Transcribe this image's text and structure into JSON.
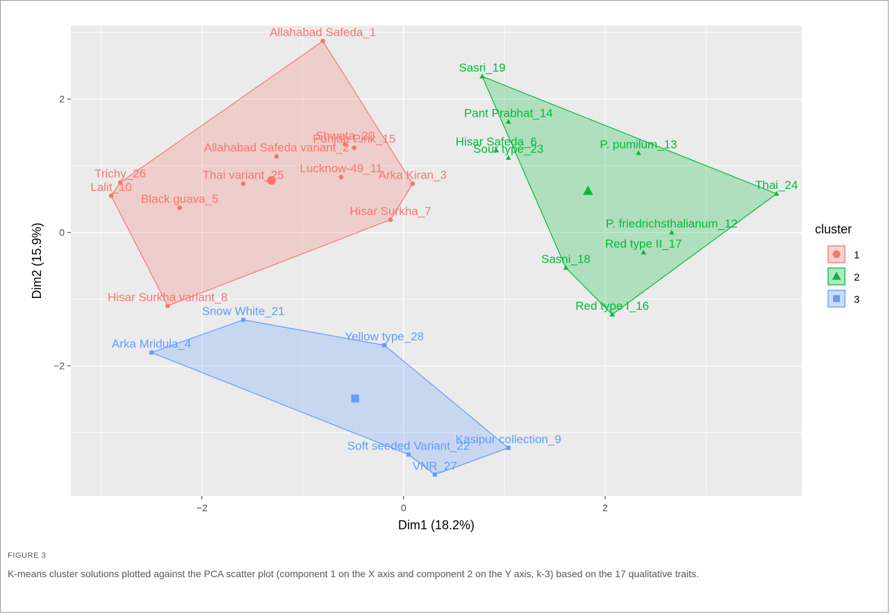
{
  "chart_data": {
    "type": "scatter",
    "xlabel": "Dim1 (18.2%)",
    "ylabel": "Dim2 (15.9%)",
    "xlim": [
      -3.3,
      3.95
    ],
    "ylim": [
      -3.95,
      3.1
    ],
    "x_ticks": [
      -2,
      0,
      2
    ],
    "y_ticks": [
      -2,
      0,
      2
    ],
    "grid": true,
    "legend_title": "cluster",
    "legend_position": "right",
    "clusters": [
      {
        "name": "1",
        "color": "#F8766D",
        "marker": "circle",
        "centroid": [
          -1.31,
          0.78
        ],
        "hull": [
          [
            -0.8,
            2.87
          ],
          [
            0.09,
            0.73
          ],
          [
            -0.13,
            0.19
          ],
          [
            -2.34,
            -1.1
          ],
          [
            -2.9,
            0.55
          ],
          [
            -2.81,
            0.75
          ]
        ],
        "points": [
          {
            "label": "Allahabad Safeda_1",
            "x": -0.8,
            "y": 2.87
          },
          {
            "label": "Shweta_20",
            "x": -0.58,
            "y": 1.32
          },
          {
            "label": "Punjab Pink_15",
            "x": -0.49,
            "y": 1.27
          },
          {
            "label": "Allahabad Safeda variant_2",
            "x": -1.26,
            "y": 1.14
          },
          {
            "label": "Lucknow-49_11",
            "x": -0.62,
            "y": 0.83
          },
          {
            "label": "Arka Kiran_3",
            "x": 0.09,
            "y": 0.73
          },
          {
            "label": "Trichy_26",
            "x": -2.81,
            "y": 0.75
          },
          {
            "label": "Lalit_10",
            "x": -2.9,
            "y": 0.55
          },
          {
            "label": "Thai variant_25",
            "x": -1.59,
            "y": 0.73
          },
          {
            "label": "Black guava_5",
            "x": -2.22,
            "y": 0.37
          },
          {
            "label": "Hisar Surkha_7",
            "x": -0.13,
            "y": 0.19
          },
          {
            "label": "Hisar Surkha variant_8",
            "x": -2.34,
            "y": -1.1
          }
        ]
      },
      {
        "name": "2",
        "color": "#00BA38",
        "marker": "triangle",
        "centroid": [
          1.83,
          0.62
        ],
        "hull": [
          [
            0.78,
            2.34
          ],
          [
            3.7,
            0.58
          ],
          [
            2.07,
            -1.23
          ],
          [
            1.61,
            -0.53
          ]
        ],
        "points": [
          {
            "label": "Sasri_19",
            "x": 0.78,
            "y": 2.34
          },
          {
            "label": "Pant Prabhat_14",
            "x": 1.04,
            "y": 1.66
          },
          {
            "label": "Hisar Safeda_6",
            "x": 0.92,
            "y": 1.23
          },
          {
            "label": "Sour type_23",
            "x": 1.04,
            "y": 1.12
          },
          {
            "label": "P. pumilum_13",
            "x": 2.33,
            "y": 1.19
          },
          {
            "label": "Thai_24",
            "x": 3.7,
            "y": 0.58
          },
          {
            "label": "P. friedrichsthalianum_12",
            "x": 2.66,
            "y": 0.0
          },
          {
            "label": "Red type II_17",
            "x": 2.38,
            "y": -0.3
          },
          {
            "label": "Sasni_18",
            "x": 1.61,
            "y": -0.53
          },
          {
            "label": "Red type I_16",
            "x": 2.07,
            "y": -1.23
          }
        ]
      },
      {
        "name": "3",
        "color": "#619CFF",
        "marker": "square",
        "centroid": [
          -0.48,
          -2.49
        ],
        "hull": [
          [
            -2.5,
            -1.8
          ],
          [
            -1.59,
            -1.31
          ],
          [
            -0.19,
            -1.69
          ],
          [
            1.04,
            -3.23
          ],
          [
            0.31,
            -3.63
          ],
          [
            0.05,
            -3.33
          ]
        ],
        "points": [
          {
            "label": "Snow White_21",
            "x": -1.59,
            "y": -1.31
          },
          {
            "label": "Arka Mridula_4",
            "x": -2.5,
            "y": -1.8
          },
          {
            "label": "Yellow type_28",
            "x": -0.19,
            "y": -1.69
          },
          {
            "label": "Kasipur collection_9",
            "x": 1.04,
            "y": -3.23
          },
          {
            "label": "Soft seeded Variant_22",
            "x": 0.05,
            "y": -3.33
          },
          {
            "label": "VNR_27",
            "x": 0.31,
            "y": -3.63
          }
        ]
      }
    ]
  },
  "figure_label": "FIGURE 3",
  "caption": "K-means cluster solutions plotted against the PCA scatter plot (component 1 on the X axis and component 2 on the Y axis, k-3) based on the 17 qualitative traits."
}
